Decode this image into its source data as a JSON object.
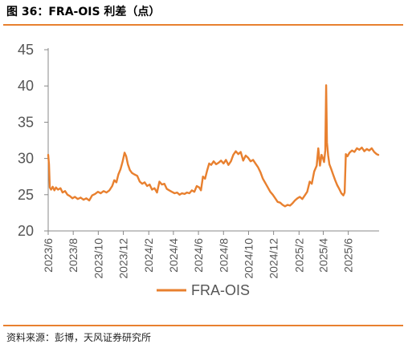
{
  "title": "图 36：FRA-OIS 利差（点）",
  "source": "资料来源：彭博，天风证券研究所",
  "chart_data": {
    "type": "line",
    "title": "",
    "xlabel": "",
    "ylabel": "",
    "ylim": [
      20,
      45
    ],
    "yticks": [
      "20",
      "25",
      "30",
      "35",
      "40",
      "45"
    ],
    "xlim": [
      "2023-06-01",
      "2025-08-15"
    ],
    "xticks": [
      {
        "date": "2023-06-01",
        "label": "2023/6"
      },
      {
        "date": "2023-08-01",
        "label": "2023/8"
      },
      {
        "date": "2023-10-01",
        "label": "2023/10"
      },
      {
        "date": "2023-12-01",
        "label": "2023/12"
      },
      {
        "date": "2024-02-01",
        "label": "2024/2"
      },
      {
        "date": "2024-04-01",
        "label": "2024/4"
      },
      {
        "date": "2024-06-01",
        "label": "2024/6"
      },
      {
        "date": "2024-08-01",
        "label": "2024/8"
      },
      {
        "date": "2024-10-01",
        "label": "2024/10"
      },
      {
        "date": "2024-12-01",
        "label": "2024/12"
      },
      {
        "date": "2025-02-01",
        "label": "2025/2"
      },
      {
        "date": "2025-04-01",
        "label": "2025/4"
      },
      {
        "date": "2025-06-01",
        "label": "2025/6"
      }
    ],
    "grid": false,
    "legend_position": "bottom",
    "series": [
      {
        "name": "FRA-OIS",
        "color": "#e8802f",
        "points": [
          [
            "2023-06-01",
            30.5
          ],
          [
            "2023-06-03",
            29.2
          ],
          [
            "2023-06-05",
            26.0
          ],
          [
            "2023-06-08",
            25.7
          ],
          [
            "2023-06-12",
            26.1
          ],
          [
            "2023-06-16",
            25.6
          ],
          [
            "2023-06-20",
            26.0
          ],
          [
            "2023-06-25",
            25.7
          ],
          [
            "2023-07-01",
            25.9
          ],
          [
            "2023-07-06",
            25.3
          ],
          [
            "2023-07-12",
            25.5
          ],
          [
            "2023-07-18",
            25.0
          ],
          [
            "2023-07-24",
            24.8
          ],
          [
            "2023-07-30",
            24.5
          ],
          [
            "2023-08-05",
            24.7
          ],
          [
            "2023-08-12",
            24.4
          ],
          [
            "2023-08-19",
            24.6
          ],
          [
            "2023-08-26",
            24.3
          ],
          [
            "2023-09-02",
            24.5
          ],
          [
            "2023-09-09",
            24.2
          ],
          [
            "2023-09-16",
            24.9
          ],
          [
            "2023-09-23",
            25.1
          ],
          [
            "2023-09-30",
            25.4
          ],
          [
            "2023-10-07",
            25.2
          ],
          [
            "2023-10-14",
            25.5
          ],
          [
            "2023-10-21",
            25.3
          ],
          [
            "2023-10-28",
            25.6
          ],
          [
            "2023-11-04",
            26.2
          ],
          [
            "2023-11-09",
            27.0
          ],
          [
            "2023-11-14",
            26.7
          ],
          [
            "2023-11-19",
            27.8
          ],
          [
            "2023-11-24",
            28.5
          ],
          [
            "2023-11-29",
            29.5
          ],
          [
            "2023-12-04",
            30.8
          ],
          [
            "2023-12-08",
            30.3
          ],
          [
            "2023-12-12",
            29.2
          ],
          [
            "2023-12-17",
            28.4
          ],
          [
            "2023-12-22",
            28.0
          ],
          [
            "2023-12-28",
            27.8
          ],
          [
            "2024-01-04",
            27.6
          ],
          [
            "2024-01-10",
            26.8
          ],
          [
            "2024-01-16",
            26.5
          ],
          [
            "2024-01-22",
            26.7
          ],
          [
            "2024-01-28",
            26.2
          ],
          [
            "2024-02-03",
            26.4
          ],
          [
            "2024-02-09",
            25.7
          ],
          [
            "2024-02-15",
            25.9
          ],
          [
            "2024-02-21",
            25.3
          ],
          [
            "2024-02-27",
            26.8
          ],
          [
            "2024-03-04",
            26.4
          ],
          [
            "2024-03-10",
            26.5
          ],
          [
            "2024-03-16",
            25.8
          ],
          [
            "2024-03-22",
            25.6
          ],
          [
            "2024-03-28",
            25.4
          ],
          [
            "2024-04-04",
            25.2
          ],
          [
            "2024-04-10",
            25.3
          ],
          [
            "2024-04-16",
            25.0
          ],
          [
            "2024-04-22",
            25.2
          ],
          [
            "2024-04-28",
            25.1
          ],
          [
            "2024-05-04",
            25.3
          ],
          [
            "2024-05-10",
            25.2
          ],
          [
            "2024-05-16",
            25.6
          ],
          [
            "2024-05-22",
            25.4
          ],
          [
            "2024-05-28",
            26.2
          ],
          [
            "2024-06-03",
            26.0
          ],
          [
            "2024-06-07",
            25.6
          ],
          [
            "2024-06-12",
            27.5
          ],
          [
            "2024-06-17",
            27.2
          ],
          [
            "2024-06-22",
            28.3
          ],
          [
            "2024-06-27",
            29.3
          ],
          [
            "2024-07-02",
            29.1
          ],
          [
            "2024-07-08",
            29.6
          ],
          [
            "2024-07-14",
            29.2
          ],
          [
            "2024-07-20",
            29.4
          ],
          [
            "2024-07-26",
            29.7
          ],
          [
            "2024-08-01",
            29.3
          ],
          [
            "2024-08-07",
            29.8
          ],
          [
            "2024-08-13",
            29.1
          ],
          [
            "2024-08-19",
            29.6
          ],
          [
            "2024-08-25",
            30.5
          ],
          [
            "2024-08-31",
            31.0
          ],
          [
            "2024-09-06",
            30.6
          ],
          [
            "2024-09-12",
            30.9
          ],
          [
            "2024-09-18",
            29.7
          ],
          [
            "2024-09-24",
            30.4
          ],
          [
            "2024-09-30",
            30.1
          ],
          [
            "2024-10-06",
            29.6
          ],
          [
            "2024-10-12",
            29.8
          ],
          [
            "2024-10-18",
            29.3
          ],
          [
            "2024-10-24",
            28.8
          ],
          [
            "2024-10-30",
            28.1
          ],
          [
            "2024-11-05",
            27.2
          ],
          [
            "2024-11-11",
            26.6
          ],
          [
            "2024-11-17",
            26.0
          ],
          [
            "2024-11-23",
            25.4
          ],
          [
            "2024-11-29",
            25.0
          ],
          [
            "2024-12-05",
            24.5
          ],
          [
            "2024-12-11",
            24.0
          ],
          [
            "2024-12-17",
            23.9
          ],
          [
            "2024-12-23",
            23.6
          ],
          [
            "2024-12-29",
            23.4
          ],
          [
            "2025-01-04",
            23.6
          ],
          [
            "2025-01-10",
            23.5
          ],
          [
            "2025-01-16",
            23.8
          ],
          [
            "2025-01-22",
            24.2
          ],
          [
            "2025-01-28",
            24.5
          ],
          [
            "2025-02-03",
            24.7
          ],
          [
            "2025-02-09",
            24.4
          ],
          [
            "2025-02-15",
            24.9
          ],
          [
            "2025-02-21",
            25.4
          ],
          [
            "2025-02-27",
            26.8
          ],
          [
            "2025-03-04",
            26.5
          ],
          [
            "2025-03-10",
            28.2
          ],
          [
            "2025-03-16",
            29.0
          ],
          [
            "2025-03-20",
            31.4
          ],
          [
            "2025-03-24",
            29.0
          ],
          [
            "2025-03-28",
            30.5
          ],
          [
            "2025-04-01",
            29.9
          ],
          [
            "2025-04-03",
            29.5
          ],
          [
            "2025-04-06",
            31.1
          ],
          [
            "2025-04-08",
            40.1
          ],
          [
            "2025-04-10",
            32.2
          ],
          [
            "2025-04-13",
            30.4
          ],
          [
            "2025-04-16",
            29.2
          ],
          [
            "2025-04-20",
            28.6
          ],
          [
            "2025-04-25",
            27.8
          ],
          [
            "2025-04-30",
            27.0
          ],
          [
            "2025-05-05",
            26.3
          ],
          [
            "2025-05-10",
            25.8
          ],
          [
            "2025-05-15",
            25.2
          ],
          [
            "2025-05-20",
            24.9
          ],
          [
            "2025-05-23",
            25.3
          ],
          [
            "2025-05-26",
            30.6
          ],
          [
            "2025-05-30",
            30.3
          ],
          [
            "2025-06-04",
            30.8
          ],
          [
            "2025-06-10",
            31.1
          ],
          [
            "2025-06-16",
            30.9
          ],
          [
            "2025-06-22",
            31.4
          ],
          [
            "2025-06-28",
            31.2
          ],
          [
            "2025-07-04",
            31.5
          ],
          [
            "2025-07-10",
            31.0
          ],
          [
            "2025-07-16",
            31.3
          ],
          [
            "2025-07-22",
            31.1
          ],
          [
            "2025-07-28",
            31.4
          ],
          [
            "2025-08-03",
            30.9
          ],
          [
            "2025-08-09",
            30.6
          ],
          [
            "2025-08-13",
            30.5
          ]
        ]
      }
    ]
  }
}
